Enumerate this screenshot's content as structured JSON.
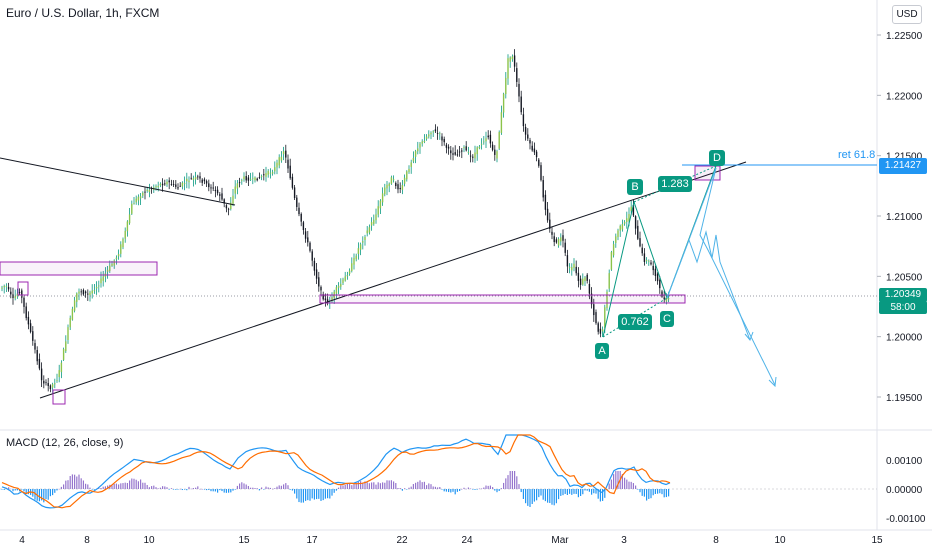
{
  "header": {
    "title": "Euro / U.S. Dollar, 1h, FXCM",
    "currency": "USD"
  },
  "price_axis": {
    "ticks": [
      "1.22500",
      "1.22000",
      "1.21500",
      "1.21000",
      "1.20500",
      "1.20000",
      "1.19500"
    ],
    "current_price": "1.20349",
    "countdown": "58:00",
    "target_price": "1.21427",
    "retracement_label": "ret 61.8"
  },
  "macd": {
    "label": "MACD (12, 26, close, 9)",
    "ticks": [
      "0.00100",
      "0.00000",
      "-0.00100"
    ]
  },
  "time_axis": {
    "ticks": [
      "4",
      "8",
      "10",
      "15",
      "17",
      "22",
      "24",
      "Mar",
      "3",
      "8",
      "10",
      "15"
    ]
  },
  "pattern": {
    "points": [
      "A",
      "B",
      "C",
      "D"
    ],
    "ratio_ab": "0.762",
    "ratio_cd": "1.283"
  },
  "colors": {
    "up": "#089981",
    "down": "#131722",
    "upBody": "#8bc34a",
    "accent": "#2196f3",
    "box": "#9c27b0",
    "macd": "#2196f3",
    "signal": "#ff6d00"
  },
  "chart_data": {
    "type": "line",
    "title": "Euro / U.S. Dollar, 1h, FXCM",
    "series": [
      {
        "name": "Euro / U.S. Dollar",
        "x": [
          "4",
          "8",
          "10",
          "15",
          "17",
          "22",
          "24",
          "Mar",
          "3"
        ],
        "values": [
          1.2045,
          1.2015,
          1.2135,
          1.2125,
          1.204,
          1.2135,
          1.216,
          1.206,
          1.2035
        ]
      }
    ],
    "ylim": [
      1.193,
      1.2265
    ],
    "grid": false,
    "legend": "none"
  }
}
